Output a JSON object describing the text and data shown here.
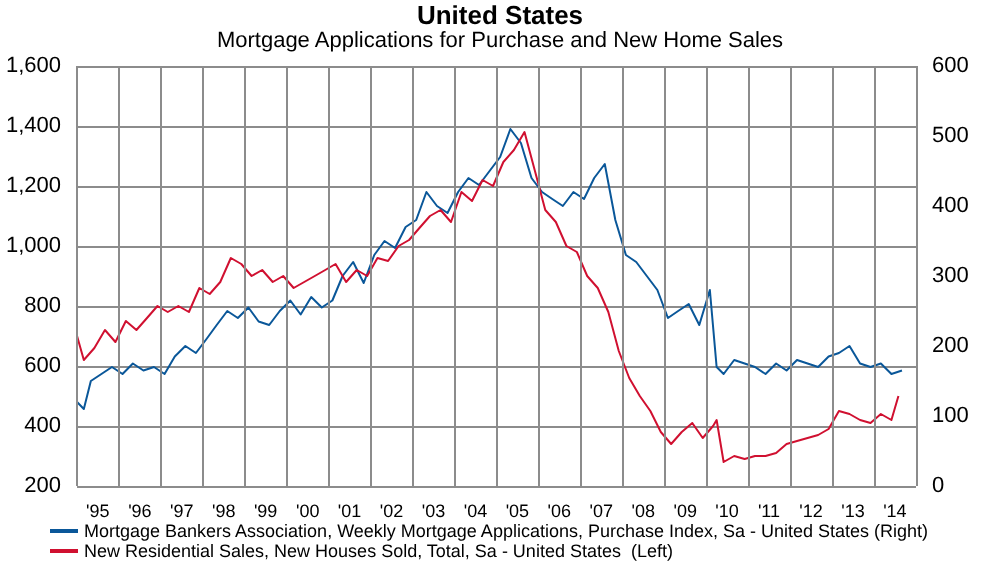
{
  "chart_data": {
    "type": "line",
    "title": "United States",
    "subtitle": "Mortgage Applications for Purchase and New Home Sales",
    "xlim": [
      "1995-01",
      "2015-01"
    ],
    "xticks": [
      {
        "value": "1995",
        "label": null
      },
      {
        "value": "1995-07",
        "label": "'95"
      },
      {
        "value": "1996",
        "label": null
      },
      {
        "value": "1996-07",
        "label": "'96"
      },
      {
        "value": "1997",
        "label": null
      },
      {
        "value": "1997-07",
        "label": "'97"
      },
      {
        "value": "1998",
        "label": null
      },
      {
        "value": "1998-07",
        "label": "'98"
      },
      {
        "value": "1999",
        "label": null
      },
      {
        "value": "1999-07",
        "label": "'99"
      },
      {
        "value": "2000",
        "label": null
      },
      {
        "value": "2000-07",
        "label": "'00"
      },
      {
        "value": "2001",
        "label": null
      },
      {
        "value": "2001-07",
        "label": "'01"
      },
      {
        "value": "2002",
        "label": null
      },
      {
        "value": "2002-07",
        "label": "'02"
      },
      {
        "value": "2003",
        "label": null
      },
      {
        "value": "2003-07",
        "label": "'03"
      },
      {
        "value": "2004",
        "label": null
      },
      {
        "value": "2004-07",
        "label": "'04"
      },
      {
        "value": "2005",
        "label": null
      },
      {
        "value": "2005-07",
        "label": "'05"
      },
      {
        "value": "2006",
        "label": null
      },
      {
        "value": "2006-07",
        "label": "'06"
      },
      {
        "value": "2007",
        "label": null
      },
      {
        "value": "2007-07",
        "label": "'07"
      },
      {
        "value": "2008",
        "label": null
      },
      {
        "value": "2008-07",
        "label": "'08"
      },
      {
        "value": "2009",
        "label": null
      },
      {
        "value": "2009-07",
        "label": "'09"
      },
      {
        "value": "2010",
        "label": null
      },
      {
        "value": "2010-07",
        "label": "'10"
      },
      {
        "value": "2011",
        "label": null
      },
      {
        "value": "2011-07",
        "label": "'11"
      },
      {
        "value": "2012",
        "label": null
      },
      {
        "value": "2012-07",
        "label": "'12"
      },
      {
        "value": "2013",
        "label": null
      },
      {
        "value": "2013-07",
        "label": "'13"
      },
      {
        "value": "2014",
        "label": null
      },
      {
        "value": "2014-07",
        "label": "'14"
      },
      {
        "value": "2015",
        "label": null
      }
    ],
    "ylim": [
      200,
      1600
    ],
    "yticks": [
      200,
      400,
      600,
      800,
      {
        "value": 1000,
        "label": "1,000"
      },
      {
        "value": 1200,
        "label": "1,200"
      },
      {
        "value": 1400,
        "label": "1,400"
      },
      {
        "value": 1600,
        "label": "1,600"
      }
    ],
    "y2lim": [
      0,
      600
    ],
    "y2ticks": [
      0,
      100,
      200,
      300,
      400,
      500,
      600
    ],
    "grid": true,
    "legend": "bottom",
    "marker": "none",
    "line_style": "solid",
    "series": [
      {
        "name": "Mortgage Bankers Association, Weekly Mortgage Applications, Purchase Index, Sa - United States (Right)",
        "color": "#0a5799",
        "axis": "y2",
        "x": [
          "1995-01",
          "1995-03",
          "1995-05",
          "1995-08",
          "1995-11",
          "1996-02",
          "1996-05",
          "1996-08",
          "1996-11",
          "1997-02",
          "1997-05",
          "1997-08",
          "1997-11",
          "1998-02",
          "1998-05",
          "1998-08",
          "1998-11",
          "1999-02",
          "1999-05",
          "1999-08",
          "1999-11",
          "2000-02",
          "2000-05",
          "2000-08",
          "2000-11",
          "2001-02",
          "2001-05",
          "2001-08",
          "2001-11",
          "2002-02",
          "2002-05",
          "2002-08",
          "2002-11",
          "2003-02",
          "2003-05",
          "2003-08",
          "2003-11",
          "2004-02",
          "2004-05",
          "2004-08",
          "2004-11",
          "2005-02",
          "2005-05",
          "2005-08",
          "2005-11",
          "2006-02",
          "2006-05",
          "2006-08",
          "2006-11",
          "2007-02",
          "2007-05",
          "2007-08",
          "2007-11",
          "2008-02",
          "2008-05",
          "2008-08",
          "2008-11",
          "2009-02",
          "2009-05",
          "2009-08",
          "2009-11",
          "2010-02",
          "2010-04",
          "2010-06",
          "2010-09",
          "2010-12",
          "2011-03",
          "2011-06",
          "2011-09",
          "2011-12",
          "2012-03",
          "2012-06",
          "2012-09",
          "2012-12",
          "2013-03",
          "2013-06",
          "2013-09",
          "2013-12",
          "2014-03",
          "2014-06",
          "2014-09"
        ],
        "values": [
          120,
          110,
          150,
          160,
          170,
          160,
          175,
          165,
          170,
          160,
          185,
          200,
          190,
          210,
          230,
          250,
          240,
          255,
          235,
          230,
          250,
          265,
          245,
          270,
          255,
          265,
          300,
          320,
          290,
          330,
          350,
          340,
          370,
          380,
          420,
          400,
          390,
          420,
          440,
          430,
          450,
          470,
          510,
          490,
          440,
          420,
          410,
          400,
          420,
          410,
          440,
          460,
          380,
          330,
          320,
          300,
          280,
          240,
          250,
          260,
          230,
          280,
          170,
          160,
          180,
          175,
          170,
          160,
          175,
          165,
          180,
          175,
          170,
          185,
          190,
          200,
          175,
          170,
          175,
          160,
          165
        ]
      },
      {
        "name": "New Residential Sales, New Houses Sold, Total, Sa - United States  (Left)",
        "color": "#d01030",
        "axis": "y",
        "x": [
          "1995-01",
          "1995-03",
          "1995-06",
          "1995-09",
          "1995-12",
          "1996-03",
          "1996-06",
          "1996-09",
          "1996-12",
          "1997-03",
          "1997-06",
          "1997-09",
          "1997-12",
          "1998-03",
          "1998-06",
          "1998-09",
          "1998-12",
          "1999-03",
          "1999-06",
          "1999-09",
          "1999-12",
          "2000-03",
          "2000-06",
          "2000-09",
          "2000-12",
          "2001-03",
          "2001-06",
          "2001-09",
          "2001-12",
          "2002-03",
          "2002-06",
          "2002-09",
          "2002-12",
          "2003-03",
          "2003-06",
          "2003-09",
          "2003-12",
          "2004-03",
          "2004-06",
          "2004-09",
          "2004-12",
          "2005-03",
          "2005-06",
          "2005-09",
          "2005-12",
          "2006-03",
          "2006-06",
          "2006-09",
          "2006-12",
          "2007-03",
          "2007-06",
          "2007-09",
          "2007-12",
          "2008-03",
          "2008-06",
          "2008-09",
          "2008-12",
          "2009-03",
          "2009-06",
          "2009-09",
          "2009-12",
          "2010-03",
          "2010-04",
          "2010-06",
          "2010-09",
          "2010-12",
          "2011-03",
          "2011-06",
          "2011-09",
          "2011-12",
          "2012-03",
          "2012-06",
          "2012-09",
          "2012-12",
          "2013-03",
          "2013-06",
          "2013-09",
          "2013-12",
          "2014-03",
          "2014-06",
          "2014-08"
        ],
        "values": [
          700,
          620,
          660,
          720,
          680,
          750,
          720,
          760,
          800,
          780,
          800,
          780,
          860,
          840,
          880,
          960,
          940,
          900,
          920,
          880,
          900,
          860,
          880,
          900,
          920,
          940,
          880,
          920,
          900,
          960,
          950,
          1000,
          1020,
          1060,
          1100,
          1120,
          1080,
          1180,
          1150,
          1220,
          1200,
          1280,
          1320,
          1380,
          1250,
          1120,
          1080,
          1000,
          980,
          900,
          860,
          780,
          650,
          560,
          500,
          450,
          380,
          340,
          380,
          410,
          360,
          400,
          420,
          280,
          300,
          290,
          300,
          300,
          310,
          340,
          350,
          360,
          370,
          390,
          450,
          440,
          420,
          410,
          440,
          420,
          500
        ]
      }
    ]
  }
}
